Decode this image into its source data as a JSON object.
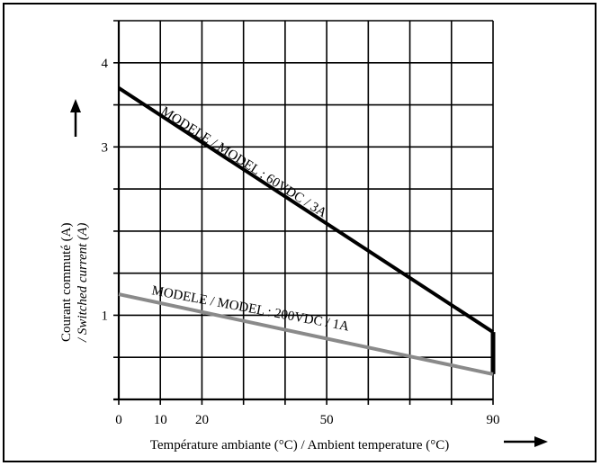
{
  "chart_data": {
    "type": "line",
    "title": "",
    "xlabel": "Température ambiante (°C) / Ambient temperature (°C)",
    "ylabel_line1": "Courant commuté (A)",
    "ylabel_line2": "/ Switched current (A)",
    "xlim": [
      0,
      90
    ],
    "ylim": [
      0,
      4.5
    ],
    "x_tick_labels": [
      {
        "value": 0,
        "label": "0"
      },
      {
        "value": 10,
        "label": "10"
      },
      {
        "value": 20,
        "label": "20"
      },
      {
        "value": 50,
        "label": "50"
      },
      {
        "value": 90,
        "label": "90"
      }
    ],
    "y_tick_labels": [
      {
        "value": 1,
        "label": "1"
      },
      {
        "value": 3,
        "label": "3"
      },
      {
        "value": 4,
        "label": "4"
      }
    ],
    "grid": true,
    "grid_x": [
      0,
      10,
      20,
      30,
      40,
      50,
      60,
      70,
      80,
      90
    ],
    "grid_y": [
      0,
      0.5,
      1,
      1.5,
      2,
      2.5,
      3,
      3.5,
      4,
      4.5
    ],
    "series": [
      {
        "name": "MODELE / MODEL : 60VDC / 3A",
        "color": "#000000",
        "x": [
          0,
          90
        ],
        "y": [
          3.7,
          0.8
        ],
        "drop_to": 0.3
      },
      {
        "name": "MODELE / MODEL : 200VDC / 1A",
        "color": "#8a8a8a",
        "x": [
          0,
          90
        ],
        "y": [
          1.25,
          0.3
        ]
      }
    ]
  }
}
